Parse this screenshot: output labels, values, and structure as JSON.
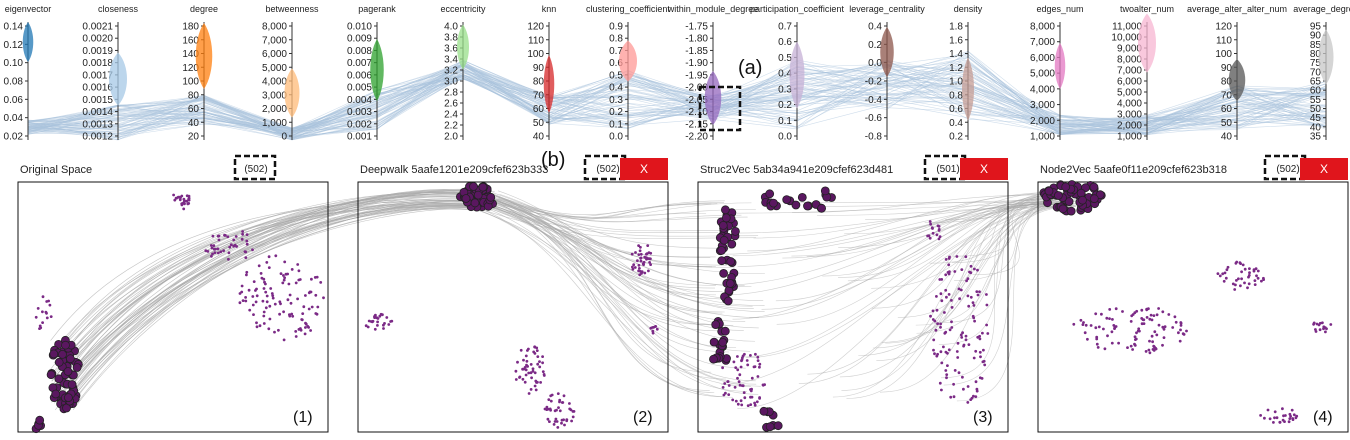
{
  "colors": {
    "link": "#aaaaaa",
    "point": "#7b2a86",
    "selected_fill": "#5a1760",
    "line_pc": "#a9c3dc",
    "close_btn": "#e0151c",
    "frame": "#111111"
  },
  "axes": [
    {
      "title": "eigenvector",
      "ticks": [
        "0.14",
        "0.12",
        "0.10",
        "0.08",
        "0.06",
        "0.04",
        "0.02"
      ],
      "color": "#1f77b4"
    },
    {
      "title": "closeness",
      "ticks": [
        "0.0021",
        "0.0020",
        "0.0019",
        "0.0018",
        "0.0017",
        "0.0016",
        "0.0015",
        "0.0014",
        "0.0013",
        "0.0012"
      ],
      "color": "#a6c8e6"
    },
    {
      "title": "degree",
      "ticks": [
        "180",
        "160",
        "140",
        "120",
        "100",
        "80",
        "60",
        "40",
        "20"
      ],
      "color": "#ff7f0e"
    },
    {
      "title": "betweenness",
      "ticks": [
        "8,000",
        "7,000",
        "6,000",
        "5,000",
        "4,000",
        "3,000",
        "2,000",
        "1,000",
        "0"
      ],
      "color": "#ffbb78"
    },
    {
      "title": "pagerank",
      "ticks": [
        "0.010",
        "0.009",
        "0.008",
        "0.007",
        "0.006",
        "0.005",
        "0.004",
        "0.003",
        "0.002",
        "0.001"
      ],
      "color": "#2ca02c"
    },
    {
      "title": "eccentricity",
      "ticks": [
        "4.0",
        "3.8",
        "3.6",
        "3.4",
        "3.2",
        "3.0",
        "2.8",
        "2.6",
        "2.4",
        "2.2",
        "2.0"
      ],
      "color": "#98df8a"
    },
    {
      "title": "knn",
      "ticks": [
        "120",
        "110",
        "100",
        "90",
        "80",
        "70",
        "60",
        "50",
        "40"
      ],
      "color": "#d62728"
    },
    {
      "title": "clustering_coefficient",
      "ticks": [
        "0.9",
        "0.8",
        "0.7",
        "0.6",
        "0.5",
        "0.4",
        "0.3",
        "0.2",
        "0.1",
        "0.0"
      ],
      "color": "#ff9896"
    },
    {
      "title": "within_module_degree",
      "ticks": [
        "-1.75",
        "-1.80",
        "-1.85",
        "-1.90",
        "-1.95",
        "-2.00",
        "-2.05",
        "-2.10",
        "-2.15",
        "-2.20"
      ],
      "color": "#9467bd"
    },
    {
      "title": "participation_coefficient",
      "ticks": [
        "0.7",
        "0.6",
        "0.5",
        "0.4",
        "0.3",
        "0.2",
        "0.1",
        "0.0"
      ],
      "color": "#c5b0d5"
    },
    {
      "title": "leverage_centrality",
      "ticks": [
        "0.4",
        "0.2",
        "0.0",
        "-0.2",
        "-0.4",
        "-0.6",
        "-0.8"
      ],
      "color": "#8c564b"
    },
    {
      "title": "density",
      "ticks": [
        "1.8",
        "1.6",
        "1.4",
        "1.2",
        "1.0",
        "0.8",
        "0.6",
        "0.4",
        "0.2"
      ],
      "color": "#c49c94"
    },
    {
      "title": "edges_num",
      "ticks": [
        "8,000",
        "7,000",
        "6,000",
        "5,000",
        "4,000",
        "3,000",
        "2,000",
        "1,000"
      ],
      "color": "#e377c2"
    },
    {
      "title": "twoalter_num",
      "ticks": [
        "11,000",
        "10,000",
        "9,000",
        "8,000",
        "7,000",
        "6,000",
        "5,000",
        "4,000",
        "3,000",
        "2,000",
        "1,000"
      ],
      "color": "#f7b6d2"
    },
    {
      "title": "average_alter_alter_num",
      "ticks": [
        "120",
        "110",
        "100",
        "90",
        "80",
        "70",
        "60",
        "50",
        "40"
      ],
      "color": "#555555"
    },
    {
      "title": "average_degree",
      "ticks": [
        "95",
        "90",
        "85",
        "80",
        "75",
        "70",
        "65",
        "60",
        "55",
        "50",
        "45",
        "40",
        "35"
      ],
      "color": "#c7c7c7"
    }
  ],
  "annotations": {
    "a": "(a)",
    "b": "(b)"
  },
  "panels": [
    {
      "title": "Original Space",
      "count": "(502)",
      "corner": "(1)",
      "close": ""
    },
    {
      "title": "Deepwalk 5aafe1201e209cfef623b333",
      "count": "(502)",
      "corner": "(2)",
      "close": "X"
    },
    {
      "title": "Struc2Vec 5ab34a941e209cfef623d481",
      "count": "(501)",
      "corner": "(3)",
      "close": "X"
    },
    {
      "title": "Node2Vec 5aafe0f11e209cfef623b318",
      "count": "(502)",
      "corner": "(4)",
      "close": "X"
    }
  ]
}
